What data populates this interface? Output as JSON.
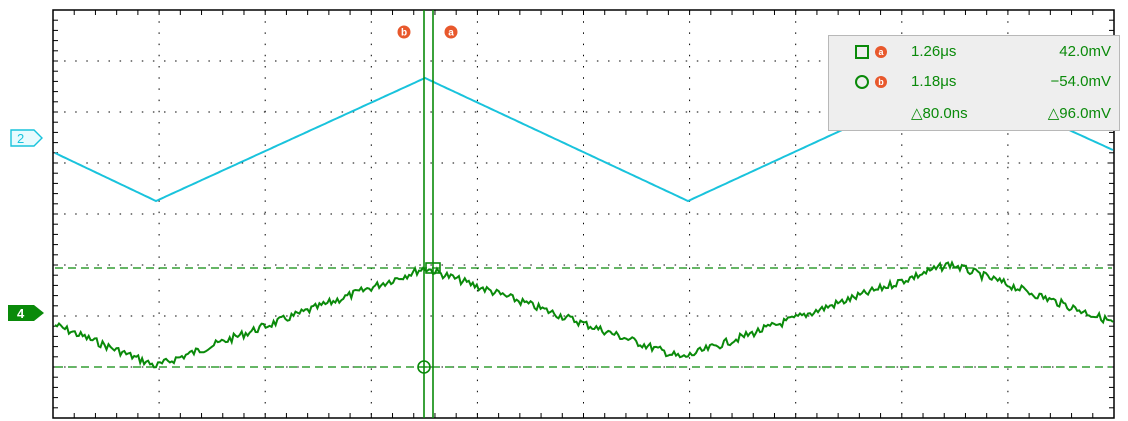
{
  "channels": [
    {
      "id": "2",
      "label": "2",
      "color": "#19c3dc"
    },
    {
      "id": "4",
      "label": "4",
      "color": "#0a8a0a"
    }
  ],
  "cursors": {
    "a_label": "a",
    "b_label": "b"
  },
  "readout": {
    "row_a": {
      "badge": "a",
      "time": "1.26μs",
      "voltage": "42.0mV"
    },
    "row_b": {
      "badge": "b",
      "time": "1.18μs",
      "voltage": "−54.0mV"
    },
    "row_delta": {
      "time": "△80.0ns",
      "voltage": "△96.0mV"
    }
  },
  "colors": {
    "grid": "#000000",
    "cursor": "#0a8a0a",
    "cursor_badge": "#e8582c",
    "trace_ch2": "#19c3dc",
    "trace_ch4": "#0a8a0a"
  }
}
